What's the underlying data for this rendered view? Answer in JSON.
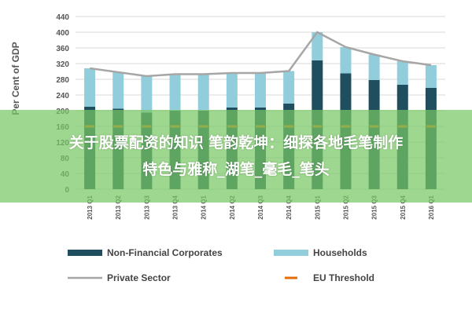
{
  "chart_data": {
    "type": "bar",
    "stacked": true,
    "ylabel": "Per Cent of GDP",
    "ylim": [
      0,
      440
    ],
    "yticks": [
      0,
      40,
      80,
      120,
      160,
      200,
      240,
      280,
      320,
      360,
      400,
      440
    ],
    "grid": true,
    "legend_position": "bottom",
    "categories": [
      "2013 Q1",
      "2013 Q2",
      "2013 Q3",
      "2013 Q4",
      "2014 Q1",
      "2014 Q2",
      "2014 Q3",
      "2014 Q4",
      "2015 Q1",
      "2015 Q2",
      "2015 Q3",
      "2015 Q4",
      "2016 Q1"
    ],
    "series": [
      {
        "name": "Non-Financial Corporates",
        "type": "bar",
        "color": "#1f4e5f",
        "values": [
          210,
          205,
          195,
          200,
          200,
          208,
          208,
          218,
          328,
          295,
          278,
          266,
          258
        ]
      },
      {
        "name": "Households",
        "type": "bar",
        "color": "#92cddc",
        "values": [
          98,
          93,
          93,
          93,
          93,
          88,
          88,
          83,
          72,
          67,
          65,
          60,
          58
        ]
      },
      {
        "name": "Private Sector",
        "type": "line",
        "color": "#a6a6a6",
        "values": [
          308,
          298,
          288,
          293,
          293,
          296,
          296,
          301,
          400,
          362,
          343,
          326,
          316
        ]
      },
      {
        "name": "EU Threshold",
        "type": "line",
        "color": "#e36c09",
        "style": "dashed",
        "values": [
          160,
          160,
          160,
          160,
          160,
          160,
          160,
          160,
          160,
          160,
          160,
          160,
          160
        ]
      }
    ]
  },
  "banner": {
    "line1": "关于股票配资的知识 笔韵乾坤：细探各地毛笔制作",
    "line2": "特色与雅称_湖笔_毫毛_笔头"
  }
}
